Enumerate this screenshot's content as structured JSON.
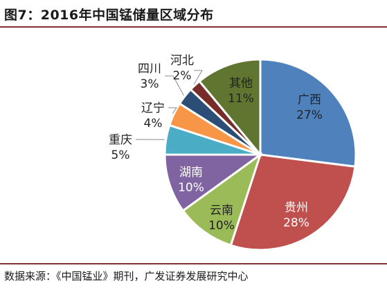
{
  "header": {
    "title": "图7：2016年中国锰储量区域分布"
  },
  "footer": {
    "source": "数据来源：《中国锰业》期刊，广发证券发展研究中心"
  },
  "chart_data": {
    "type": "pie",
    "title": "图7：2016年中国锰储量区域分布",
    "slices": [
      {
        "name": "广西",
        "value": 27,
        "label": "27%",
        "color": "#4F81BD"
      },
      {
        "name": "贵州",
        "value": 28,
        "label": "28%",
        "color": "#C0504D"
      },
      {
        "name": "云南",
        "value": 10,
        "label": "10%",
        "color": "#9BBB59"
      },
      {
        "name": "湖南",
        "value": 10,
        "label": "10%",
        "color": "#8064A2"
      },
      {
        "name": "重庆",
        "value": 5,
        "label": "5%",
        "color": "#4BACC6"
      },
      {
        "name": "辽宁",
        "value": 4,
        "label": "4%",
        "color": "#F79646"
      },
      {
        "name": "四川",
        "value": 3,
        "label": "3%",
        "color": "#2C4D75"
      },
      {
        "name": "河北",
        "value": 2,
        "label": "2%",
        "color": "#772C2A"
      },
      {
        "name": "其他",
        "value": 11,
        "label": "11%",
        "color": "#5F7530"
      }
    ]
  }
}
